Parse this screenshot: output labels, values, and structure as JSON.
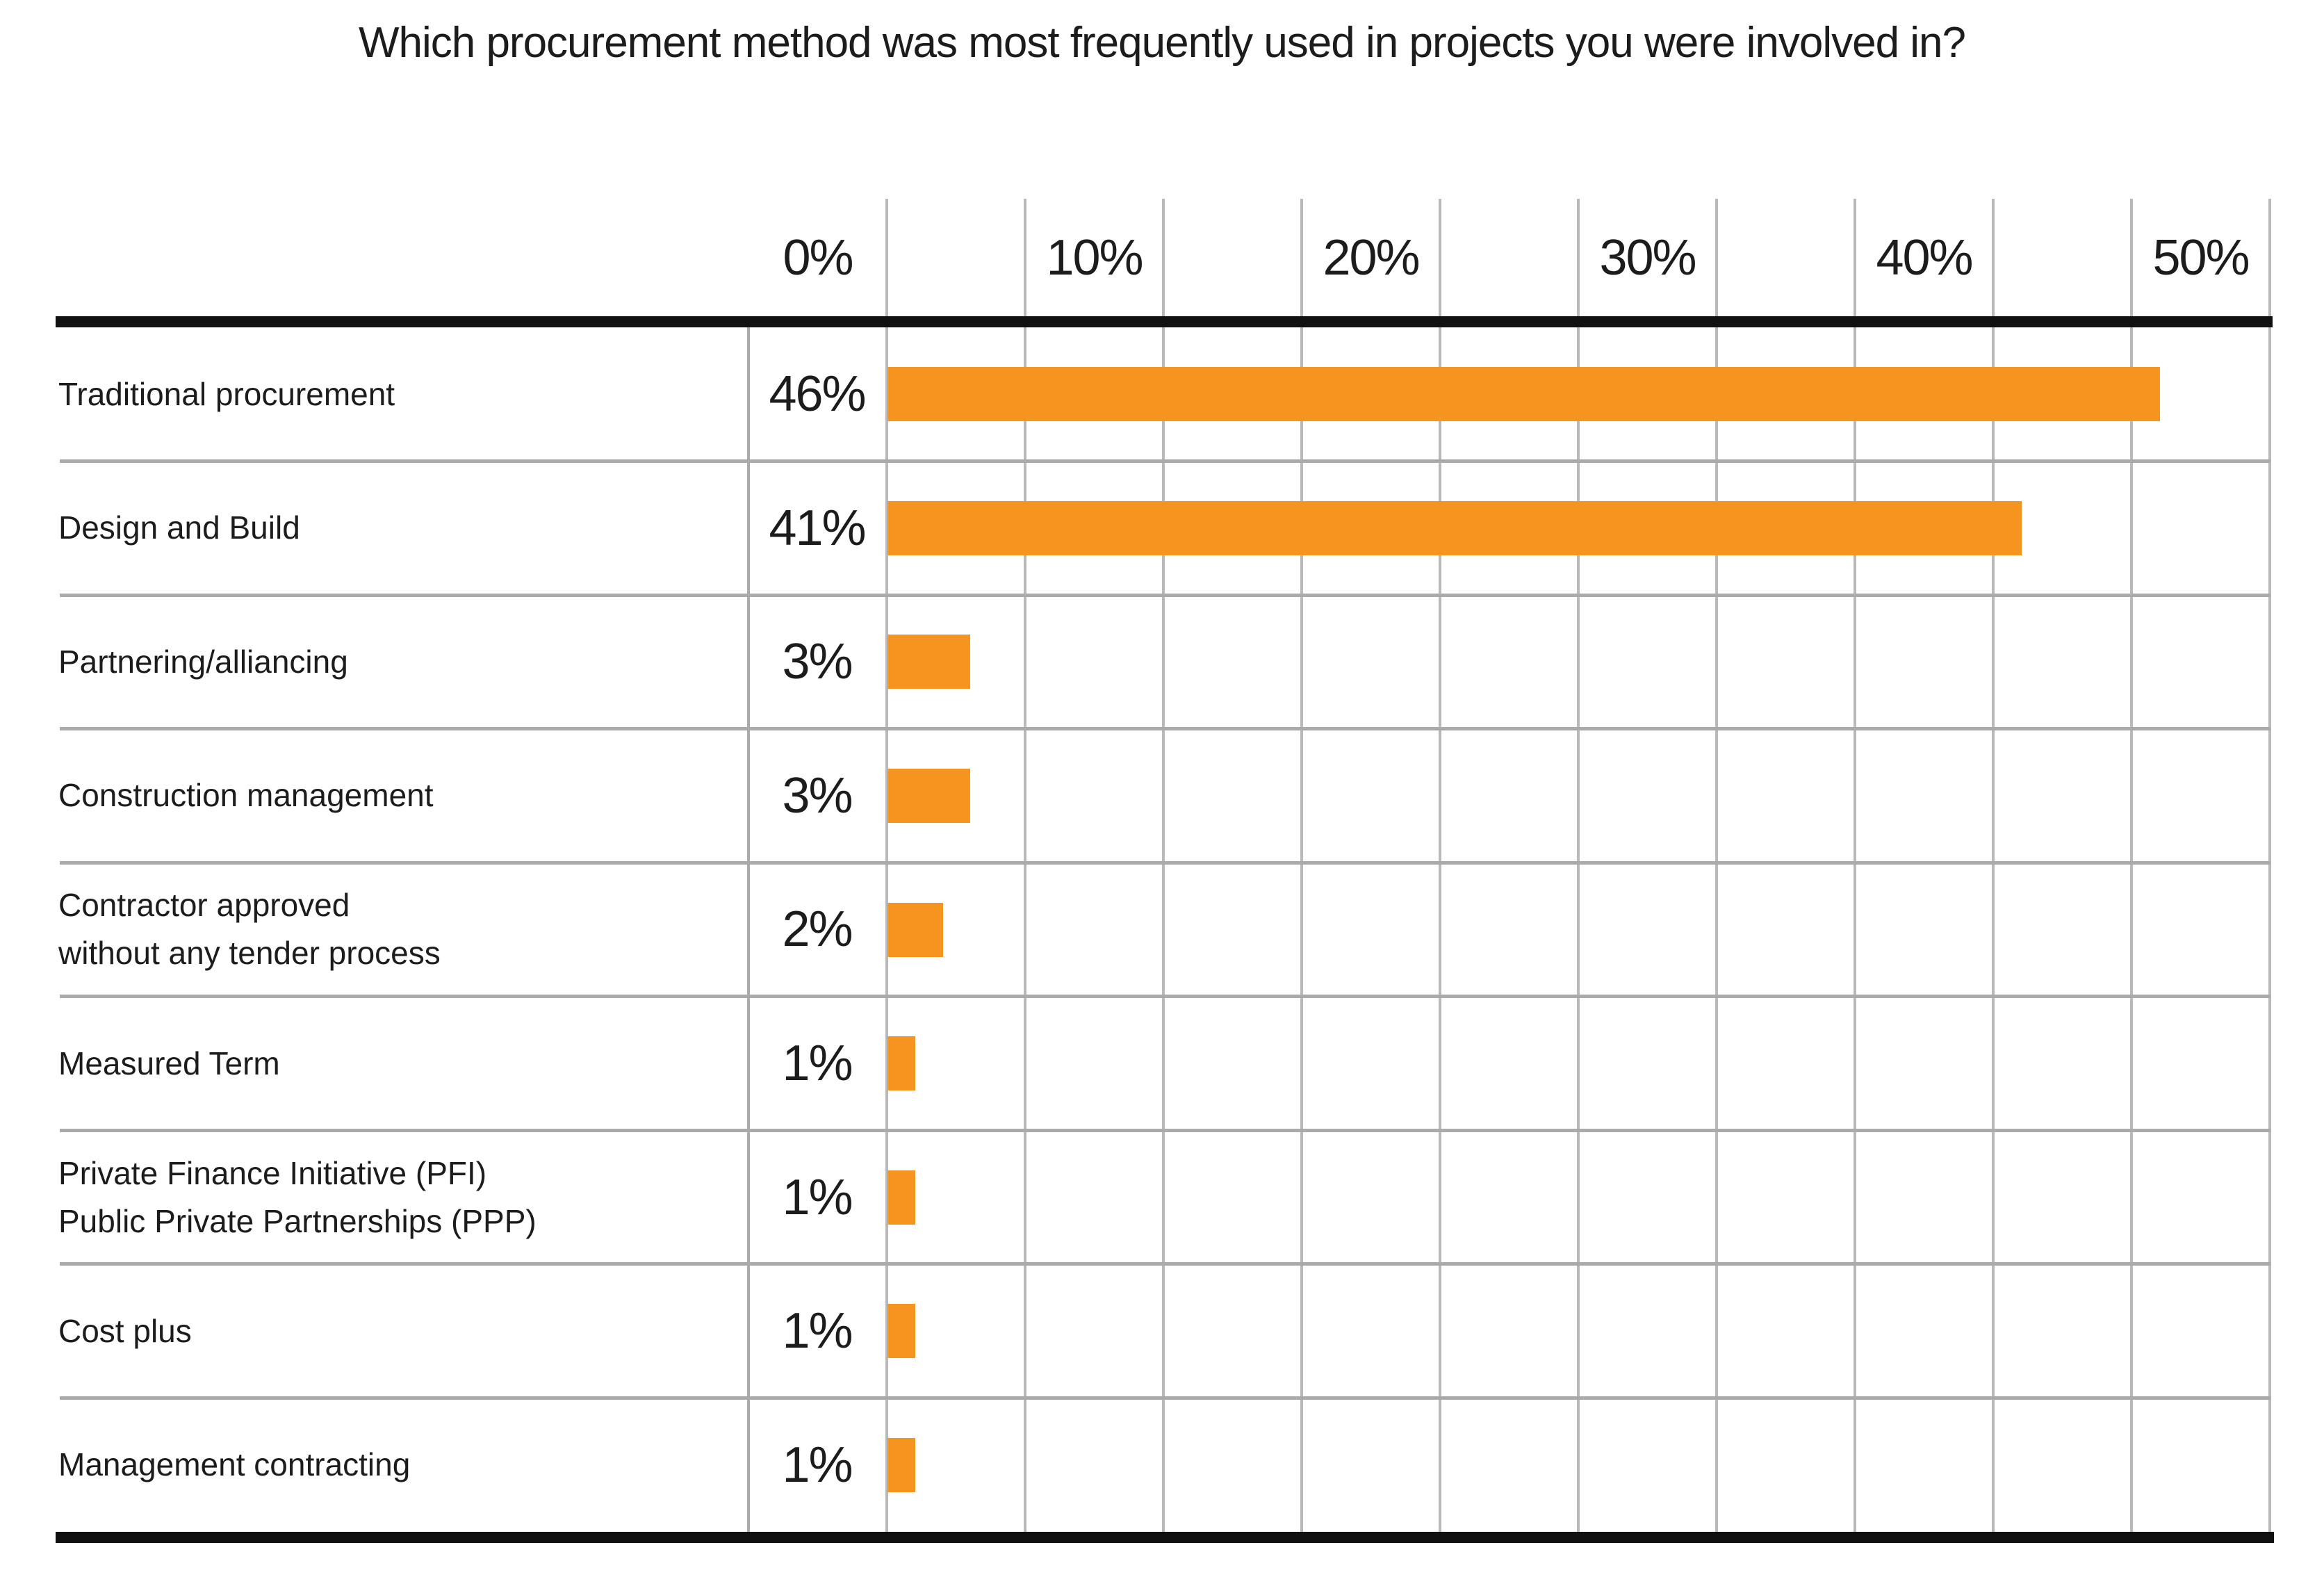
{
  "header": {
    "title": "Which procurement method was most frequently used in projects you were involved in?"
  },
  "chart_data": {
    "type": "bar",
    "orientation": "horizontal",
    "title": "Which procurement method was most frequently used in projects you were involved in?",
    "categories": [
      "Traditional procurement",
      "Design and Build",
      "Partnering/alliancing",
      "Construction management",
      "Contractor approved\nwithout any tender process",
      "Measured Term",
      "Private Finance Initiative (PFI)\nPublic Private Partnerships (PPP)",
      "Cost plus",
      "Management contracting"
    ],
    "values": [
      46,
      41,
      3,
      3,
      2,
      1,
      1,
      1,
      1
    ],
    "value_labels": [
      "46%",
      "41%",
      "3%",
      "3%",
      "2%",
      "1%",
      "1%",
      "1%",
      "1%"
    ],
    "x_axis": {
      "tick_labels": [
        "0%",
        "10%",
        "20%",
        "30%",
        "40%",
        "50%"
      ],
      "min": 0,
      "max": 50,
      "minor_step_percent": 5,
      "major_step_percent": 10
    },
    "legend": "none",
    "grid": "vertical-minor",
    "colors": {
      "bar": "#F5941E",
      "gridline": "#b9b9b9",
      "row_separator": "#aaaaaa",
      "axis_rule": "#111111",
      "text": "#1c1c1c",
      "background": "#ffffff"
    }
  }
}
